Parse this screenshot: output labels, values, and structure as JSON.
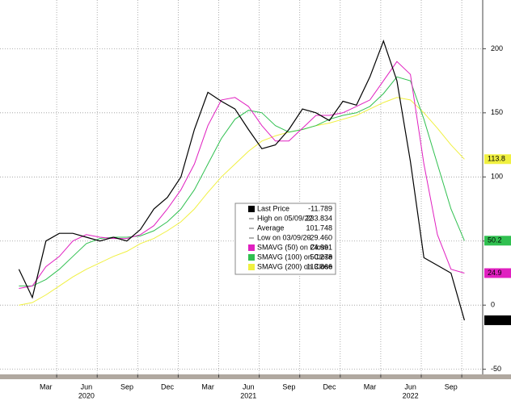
{
  "chart_data": {
    "type": "line",
    "x": [
      "2020-01",
      "2020-02",
      "2020-03",
      "2020-04",
      "2020-05",
      "2020-06",
      "2020-07",
      "2020-08",
      "2020-09",
      "2020-10",
      "2020-11",
      "2020-12",
      "2021-01",
      "2021-02",
      "2021-03",
      "2021-04",
      "2021-05",
      "2021-06",
      "2021-07",
      "2021-08",
      "2021-09",
      "2021-10",
      "2021-11",
      "2021-12",
      "2022-01",
      "2022-02",
      "2022-03",
      "2022-04",
      "2022-05",
      "2022-06",
      "2022-07",
      "2022-08",
      "2022-09",
      "2022-10"
    ],
    "xticks": [
      {
        "value": "2020-03",
        "label": "Mar"
      },
      {
        "value": "2020-06",
        "label": "Jun"
      },
      {
        "value": "2020-09",
        "label": "Sep"
      },
      {
        "value": "2020-12",
        "label": "Dec"
      },
      {
        "value": "2021-03",
        "label": "Mar"
      },
      {
        "value": "2021-06",
        "label": "Jun"
      },
      {
        "value": "2021-09",
        "label": "Sep"
      },
      {
        "value": "2021-12",
        "label": "Dec"
      },
      {
        "value": "2022-03",
        "label": "Mar"
      },
      {
        "value": "2022-06",
        "label": "Jun"
      },
      {
        "value": "2022-09",
        "label": "Sep"
      }
    ],
    "xyears": [
      {
        "value": "2020-06",
        "label": "2020"
      },
      {
        "value": "2021-06",
        "label": "2021"
      },
      {
        "value": "2022-06",
        "label": "2022"
      }
    ],
    "ylim": [
      -54,
      238
    ],
    "yticks": [
      -50,
      0,
      50,
      100,
      150,
      200
    ],
    "grid": true,
    "series": [
      {
        "name": "Last Price",
        "color": "#000000",
        "legend_value": "-11.789",
        "tag": "-11.",
        "values": [
          28,
          6,
          50,
          56,
          56,
          53,
          50,
          53,
          50,
          59,
          75,
          84,
          100,
          137,
          166,
          159,
          153,
          137,
          122,
          125,
          137,
          153,
          150,
          144,
          159,
          156,
          178,
          206,
          175,
          112,
          37,
          31,
          25,
          -11.789
        ]
      },
      {
        "name": "SMAVG (50)  on Close",
        "color": "#e020c0",
        "legend_value": "24.991",
        "tag": "24.9",
        "values": [
          13,
          15,
          30,
          38,
          50,
          55,
          53,
          52,
          52,
          55,
          62,
          75,
          90,
          110,
          140,
          160,
          162,
          155,
          140,
          128,
          128,
          138,
          148,
          148,
          150,
          155,
          160,
          175,
          190,
          180,
          110,
          55,
          28,
          24.991
        ]
      },
      {
        "name": "SMAVG (100)  on Close",
        "color": "#30c050",
        "legend_value": "50.278",
        "tag": "50.2",
        "values": [
          15,
          15,
          20,
          28,
          38,
          48,
          52,
          53,
          53,
          54,
          58,
          65,
          75,
          90,
          110,
          130,
          145,
          152,
          150,
          140,
          135,
          137,
          140,
          145,
          148,
          150,
          155,
          165,
          178,
          175,
          145,
          110,
          75,
          50.278
        ]
      },
      {
        "name": "SMAVG (200)  on Close",
        "color": "#f0f040",
        "legend_value": "113.866",
        "tag": "113.8",
        "values": [
          0,
          2,
          8,
          15,
          22,
          28,
          33,
          38,
          42,
          48,
          52,
          58,
          65,
          75,
          88,
          100,
          110,
          120,
          128,
          132,
          135,
          137,
          140,
          142,
          145,
          148,
          153,
          158,
          162,
          160,
          150,
          138,
          125,
          113.866
        ]
      }
    ],
    "stats": [
      {
        "label": "High on 05/09/22",
        "value": "233.834"
      },
      {
        "label": "Average",
        "value": "101.748"
      },
      {
        "label": "Low on 03/09/20",
        "value": "-29.460"
      }
    ]
  }
}
